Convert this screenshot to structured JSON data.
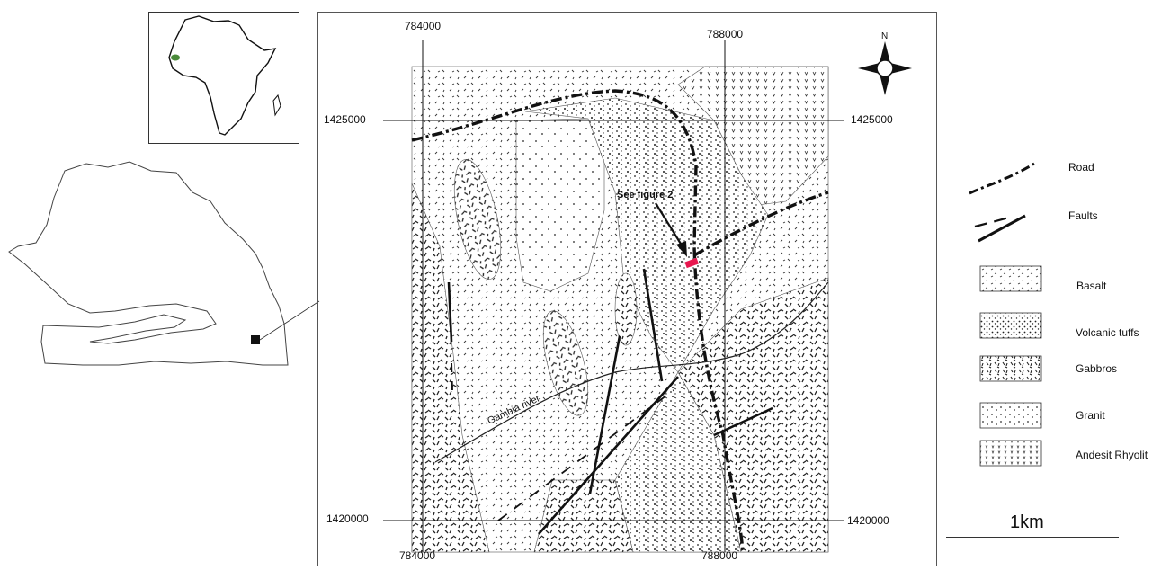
{
  "map": {
    "grid": {
      "x_top": [
        "784000",
        "788000"
      ],
      "x_bottom": [
        "784000",
        "788000"
      ],
      "y_left": [
        "1425000",
        "1420000"
      ],
      "y_right": [
        "1425000",
        "1420000"
      ]
    },
    "annotations": {
      "see_figure": "See figure 2",
      "river": "Gambia river"
    },
    "north_label": "N",
    "highlight_color": "#e8174f"
  },
  "legend": {
    "items": [
      {
        "id": "road",
        "label": "Road"
      },
      {
        "id": "faults",
        "label": "Faults"
      },
      {
        "id": "basalt",
        "label": "Basalt"
      },
      {
        "id": "volcanic-tuffs",
        "label": "Volcanic tuffs"
      },
      {
        "id": "gabbros",
        "label": "Gabbros"
      },
      {
        "id": "granit",
        "label": "Granit"
      },
      {
        "id": "andesit-rhyolit",
        "label": "Andesit Rhyolit"
      }
    ],
    "scale_label": "1km"
  },
  "inset": {
    "africa_marker_color": "#4a8a3a"
  }
}
